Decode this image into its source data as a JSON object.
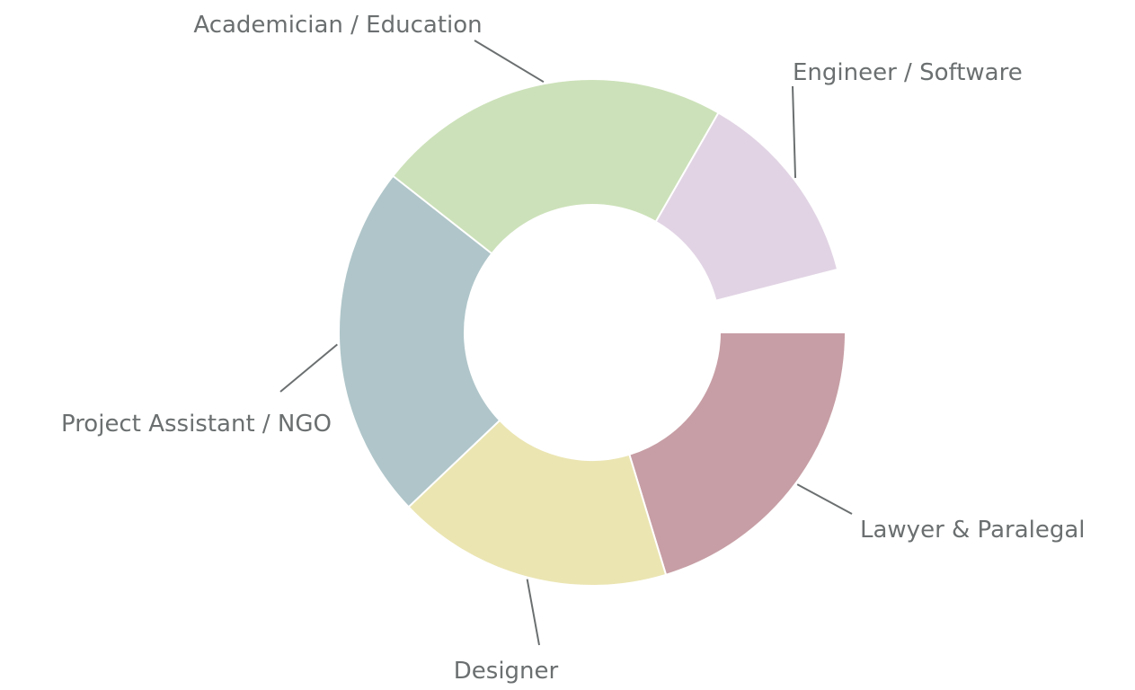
{
  "chart_data": {
    "type": "pie",
    "donut": true,
    "slices": [
      {
        "label": "Lawyer & Paralegal",
        "value": 20.3,
        "color": "#c79ea5"
      },
      {
        "label": "Designer",
        "value": 17.6,
        "color": "#ebe5b2"
      },
      {
        "label": "Project Assistant / NGO",
        "value": 22.7,
        "color": "#afc5c9"
      },
      {
        "label": "Academician / Education",
        "value": 22.7,
        "color": "#cce1b9"
      },
      {
        "label": "Engineer / Software",
        "value": 12.7,
        "color": "#e1d3e4"
      }
    ]
  }
}
